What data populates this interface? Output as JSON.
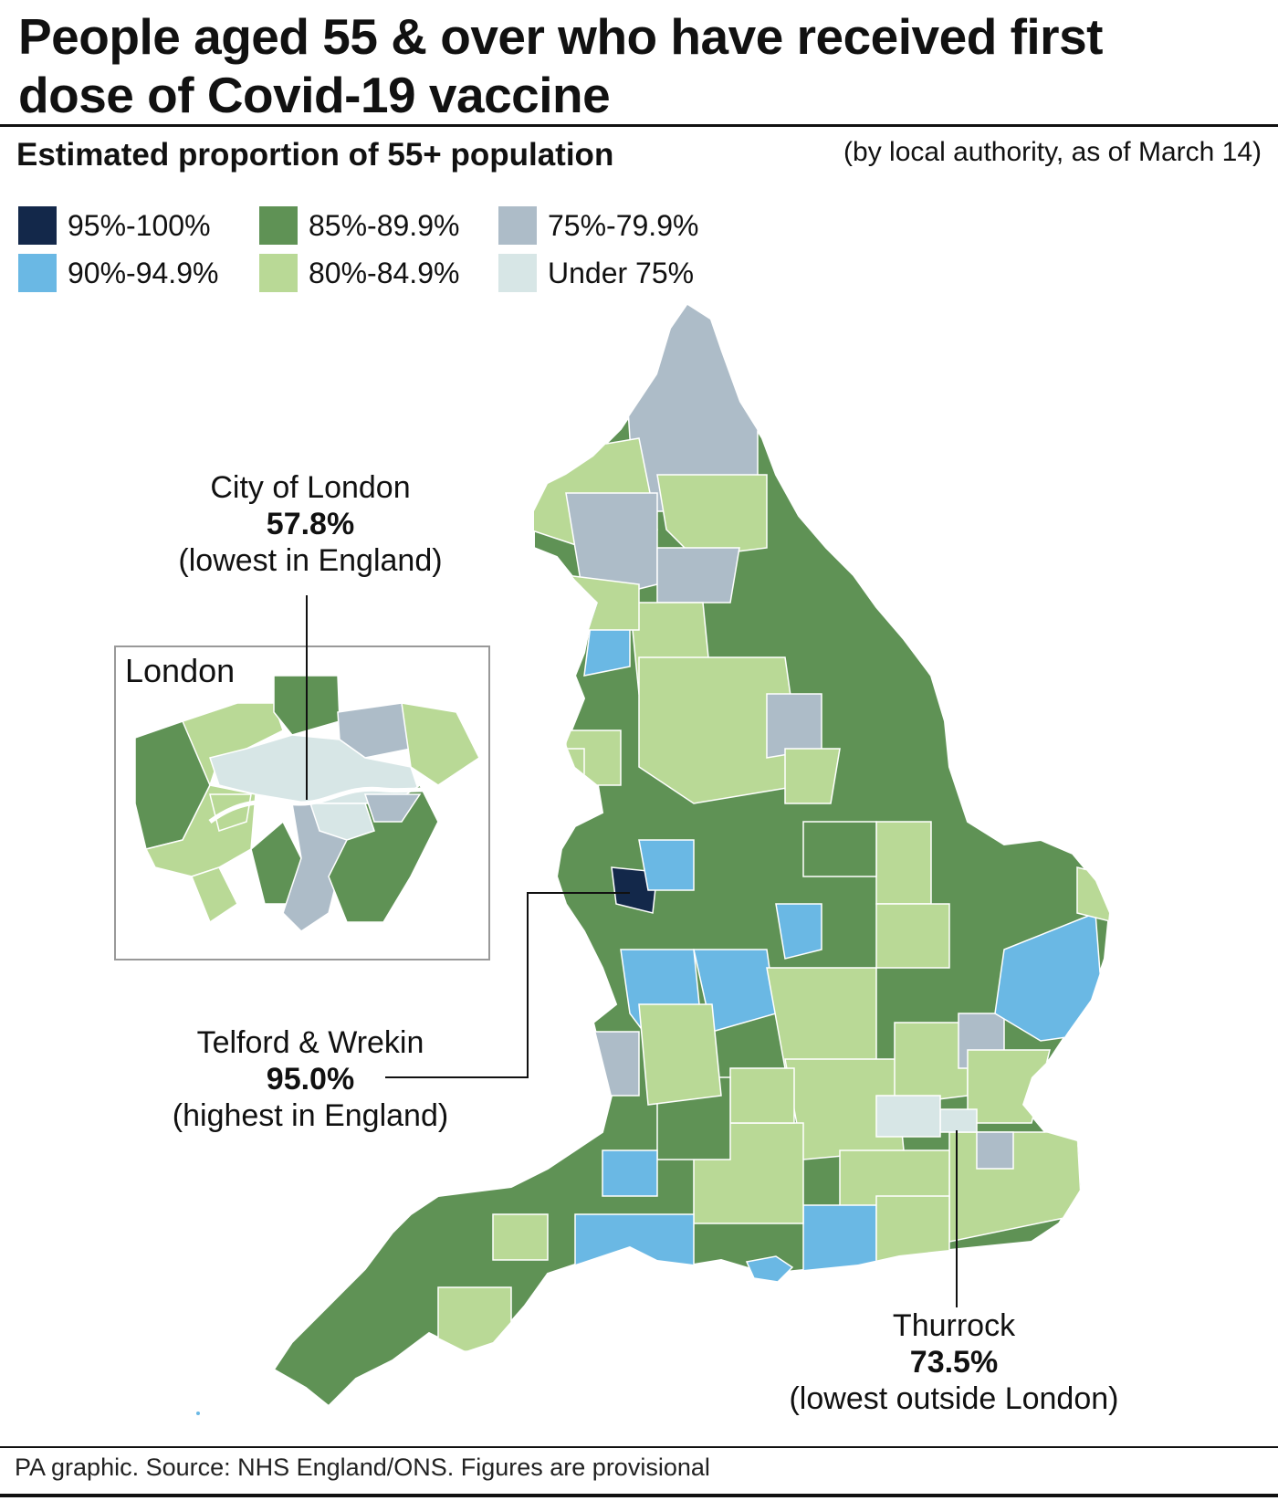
{
  "title": "People aged 55 & over who have received first dose of Covid-19 vaccine",
  "subtitle": "Estimated proportion of 55+ population",
  "note": "(by local authority, as of March 14)",
  "legend": [
    {
      "label": "95%-100%",
      "color": "#13284a"
    },
    {
      "label": "85%-89.9%",
      "color": "#5f9255"
    },
    {
      "label": "75%-79.9%",
      "color": "#adbcc8"
    },
    {
      "label": "90%-94.9%",
      "color": "#6ab8e4"
    },
    {
      "label": "80%-84.9%",
      "color": "#b9d996"
    },
    {
      "label": "Under 75%",
      "color": "#d7e6e6"
    }
  ],
  "inset": {
    "title": "London"
  },
  "callouts": {
    "city_of_london": {
      "name": "City of London",
      "value": "57.8%",
      "note": "(lowest in England)"
    },
    "telford": {
      "name": "Telford & Wrekin",
      "value": "95.0%",
      "note": "(highest in England)"
    },
    "thurrock": {
      "name": "Thurrock",
      "value": "73.5%",
      "note": "(lowest outside London)"
    }
  },
  "footer": "PA graphic. Source: NHS England/ONS. Figures are provisional"
}
